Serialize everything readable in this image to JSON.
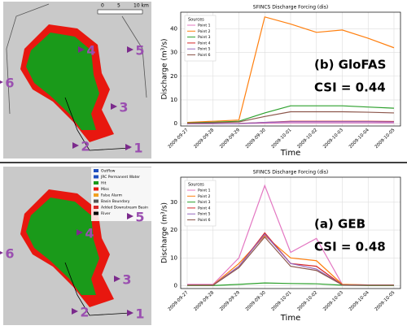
{
  "chart_data": [
    {
      "type": "line",
      "title": "SFINCS Discharge Forcing (dis)",
      "x_label": "Time",
      "y_label": "Discharge (m³/s)",
      "legend_title": "Sources",
      "annotations": [
        "(b) GloFAS",
        "CSI = 0.44"
      ],
      "categories": [
        "2009-09-27",
        "2009-09-28",
        "2009-09-29",
        "2009-09-30",
        "2009-10-01",
        "2009-10-02",
        "2009-10-03",
        "2009-10-04",
        "2009-10-05"
      ],
      "ylim": [
        -1,
        47
      ],
      "yticks": [
        0,
        10,
        20,
        30,
        40
      ],
      "grid": true,
      "series": [
        {
          "name": "Point 1",
          "color": "#e377c2",
          "values": [
            0,
            0,
            0,
            0.2,
            0.3,
            0.3,
            0.3,
            0.3,
            0.3
          ]
        },
        {
          "name": "Point 2",
          "color": "#ff7f0e",
          "values": [
            0.5,
            1,
            1.5,
            45,
            42,
            38.5,
            39.5,
            36,
            32
          ]
        },
        {
          "name": "Point 3",
          "color": "#2ca02c",
          "values": [
            0.3,
            0.6,
            1,
            4.5,
            7.5,
            7.5,
            7.5,
            7,
            6.5
          ]
        },
        {
          "name": "Point 4",
          "color": "#d62728",
          "values": [
            0,
            0,
            0.1,
            0.5,
            1,
            1,
            1,
            1,
            0.9
          ]
        },
        {
          "name": "Point 5",
          "color": "#9467bd",
          "values": [
            0,
            0,
            0,
            0.5,
            0.8,
            0.8,
            0.8,
            0.8,
            0.7
          ]
        },
        {
          "name": "Point 6",
          "color": "#8c564b",
          "values": [
            0.2,
            0.4,
            0.7,
            3,
            5,
            5,
            5,
            4.8,
            4.5
          ]
        }
      ]
    },
    {
      "type": "line",
      "title": "SFINCS Discharge Forcing (dis)",
      "x_label": "Time",
      "y_label": "Discharge (m³/s)",
      "legend_title": "Sources",
      "annotations": [
        "(a) GEB",
        "CSI = 0.48"
      ],
      "categories": [
        "2009-09-27",
        "2009-09-28",
        "2009-09-29",
        "2009-09-30",
        "2009-10-01",
        "2009-10-02",
        "2009-10-03",
        "2009-10-04",
        "2009-10-05"
      ],
      "ylim": [
        -1,
        39
      ],
      "yticks": [
        0,
        10,
        20,
        30
      ],
      "grid": true,
      "series": [
        {
          "name": "Point 1",
          "color": "#e377c2",
          "values": [
            0.5,
            0.5,
            10,
            36,
            12,
            17,
            0.5,
            0.3,
            0.3
          ]
        },
        {
          "name": "Point 2",
          "color": "#ff7f0e",
          "values": [
            0.3,
            0.3,
            8,
            18,
            10,
            9,
            0.5,
            0.3,
            0.3
          ]
        },
        {
          "name": "Point 3",
          "color": "#2ca02c",
          "values": [
            0.1,
            0.1,
            0.5,
            1,
            0.8,
            0.7,
            0.2,
            0.1,
            0.1
          ]
        },
        {
          "name": "Point 4",
          "color": "#d62728",
          "values": [
            0.2,
            0.2,
            7,
            19,
            8,
            7,
            0.3,
            0.2,
            0.2
          ]
        },
        {
          "name": "Point 5",
          "color": "#9467bd",
          "values": [
            0.2,
            0.2,
            7,
            18.5,
            8,
            6,
            0.3,
            0.2,
            0.2
          ]
        },
        {
          "name": "Point 6",
          "color": "#8c564b",
          "values": [
            0.2,
            0.2,
            6.5,
            17.5,
            7,
            5.5,
            0.3,
            0.2,
            0.2
          ]
        }
      ]
    }
  ],
  "maps": [
    {
      "scale_labels": [
        "0",
        "5",
        "10 km"
      ],
      "point_labels": [
        "1",
        "2",
        "3",
        "4",
        "5",
        "6"
      ]
    },
    {
      "legend": [
        "Outflow",
        "JRC Permanent Water",
        "Hit",
        "Miss",
        "False Alarm",
        "Basin Boundary",
        "Added Downstream Basin",
        "River"
      ],
      "point_labels": [
        "1",
        "2",
        "3",
        "4",
        "5",
        "6"
      ]
    }
  ]
}
